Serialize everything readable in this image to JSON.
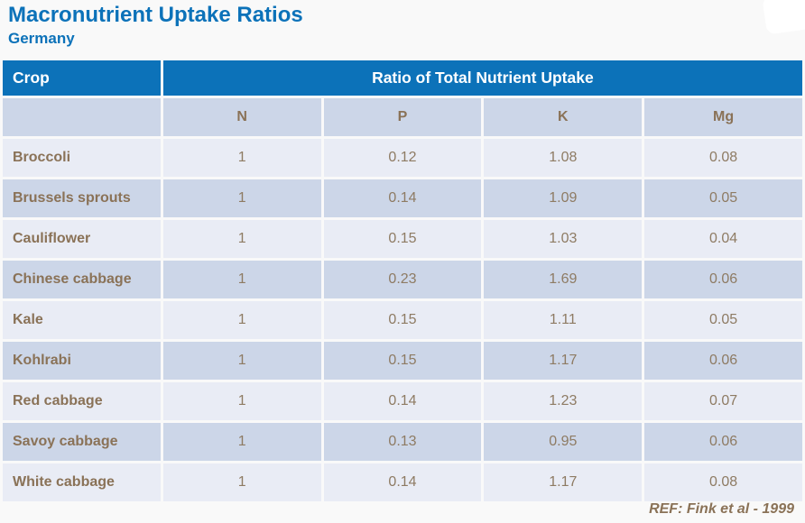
{
  "chart_data": {
    "type": "table",
    "title": "Macronutrient Uptake Ratios",
    "subtitle": "Germany",
    "span_header": "Ratio of Total Nutrient Uptake",
    "columns": [
      "Crop",
      "N",
      "P",
      "K",
      "Mg"
    ],
    "rows": [
      {
        "crop": "Broccoli",
        "values": [
          "1",
          "0.12",
          "1.08",
          "0.08"
        ]
      },
      {
        "crop": "Brussels sprouts",
        "values": [
          "1",
          "0.14",
          "1.09",
          "0.05"
        ]
      },
      {
        "crop": "Cauliflower",
        "values": [
          "1",
          "0.15",
          "1.03",
          "0.04"
        ]
      },
      {
        "crop": "Chinese cabbage",
        "values": [
          "1",
          "0.23",
          "1.69",
          "0.06"
        ]
      },
      {
        "crop": "Kale",
        "values": [
          "1",
          "0.15",
          "1.11",
          "0.05"
        ]
      },
      {
        "crop": "Kohlrabi",
        "values": [
          "1",
          "0.15",
          "1.17",
          "0.06"
        ]
      },
      {
        "crop": "Red cabbage",
        "values": [
          "1",
          "0.14",
          "1.23",
          "0.07"
        ]
      },
      {
        "crop": "Savoy cabbage",
        "values": [
          "1",
          "0.13",
          "0.95",
          "0.06"
        ]
      },
      {
        "crop": "White cabbage",
        "values": [
          "1",
          "0.14",
          "1.17",
          "0.08"
        ]
      }
    ],
    "reference": "REF: Fink et al - 1999"
  },
  "colors": {
    "header_blue": "#0c72b9",
    "title_blue": "#0c72b9",
    "row_light": "#e9ecf5",
    "row_dark": "#ccd6e8",
    "subheader_background": "#ccd6e8",
    "label_brown": "#8a7257",
    "value_brown": "#8e7b63",
    "header_text": "#ffffff",
    "page_background": "#f9f9f9"
  }
}
